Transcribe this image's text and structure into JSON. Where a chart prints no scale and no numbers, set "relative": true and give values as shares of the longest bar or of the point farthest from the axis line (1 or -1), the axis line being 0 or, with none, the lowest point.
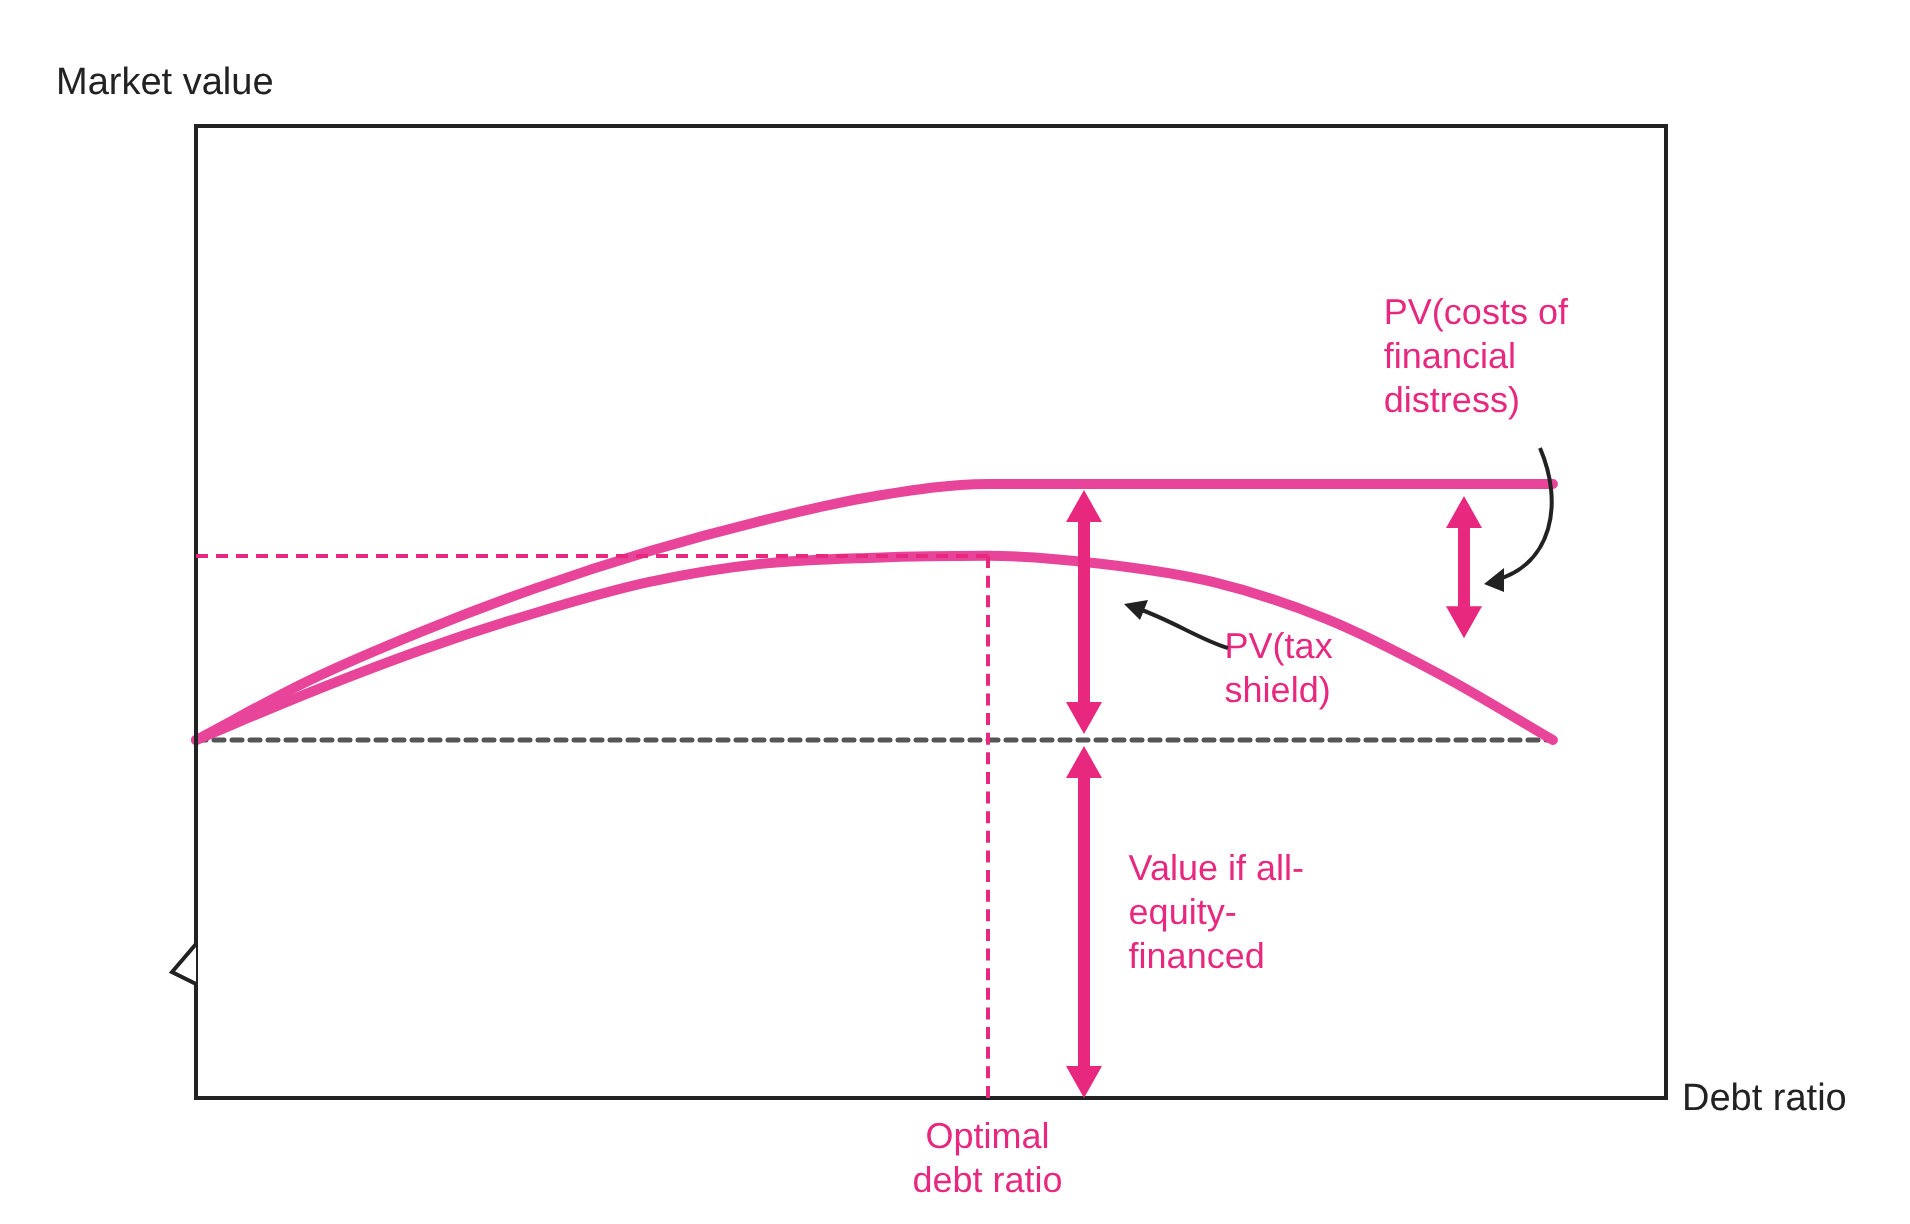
{
  "chart_data": {
    "type": "line",
    "relative": true,
    "xlabel": "Debt ratio",
    "categories": [
      null,
      null,
      null,
      null,
      null,
      null,
      null,
      null,
      null,
      null,
      null,
      null,
      null,
      null
    ],
    "series": [
      {
        "color": "#e8459a",
        "values": [
          0.583,
          0.68,
          0.76,
          0.83,
          0.89,
          0.94,
          0.98,
          1,
          1,
          1,
          1,
          1,
          1,
          null
        ]
      },
      {
        "color": "#e8459a",
        "values": [
          0.583,
          0.66,
          0.73,
          0.79,
          0.84,
          0.87,
          0.88,
          0.883,
          0.87,
          0.84,
          0.78,
          0.69,
          0.583,
          null
        ]
      },
      {
        "color": "#555555",
        "line_style": "dashed",
        "values": [
          0.583,
          0.583,
          0.583,
          0.583,
          0.583,
          0.583,
          0.583,
          0.583,
          0.583,
          0.583,
          0.583,
          0.583,
          0.583,
          null
        ]
      }
    ],
    "annotations": [
      "PV(costs of financial distress)",
      "PV(tax shield)",
      "Value if all-equity-financed",
      "Optimal debt ratio",
      "Market value"
    ],
    "ref_lines": [
      {
        "axis": "y",
        "value": 0.883,
        "color": "#e8287f",
        "line_style": "dashed"
      }
    ],
    "legend": false,
    "marker": "none"
  }
}
